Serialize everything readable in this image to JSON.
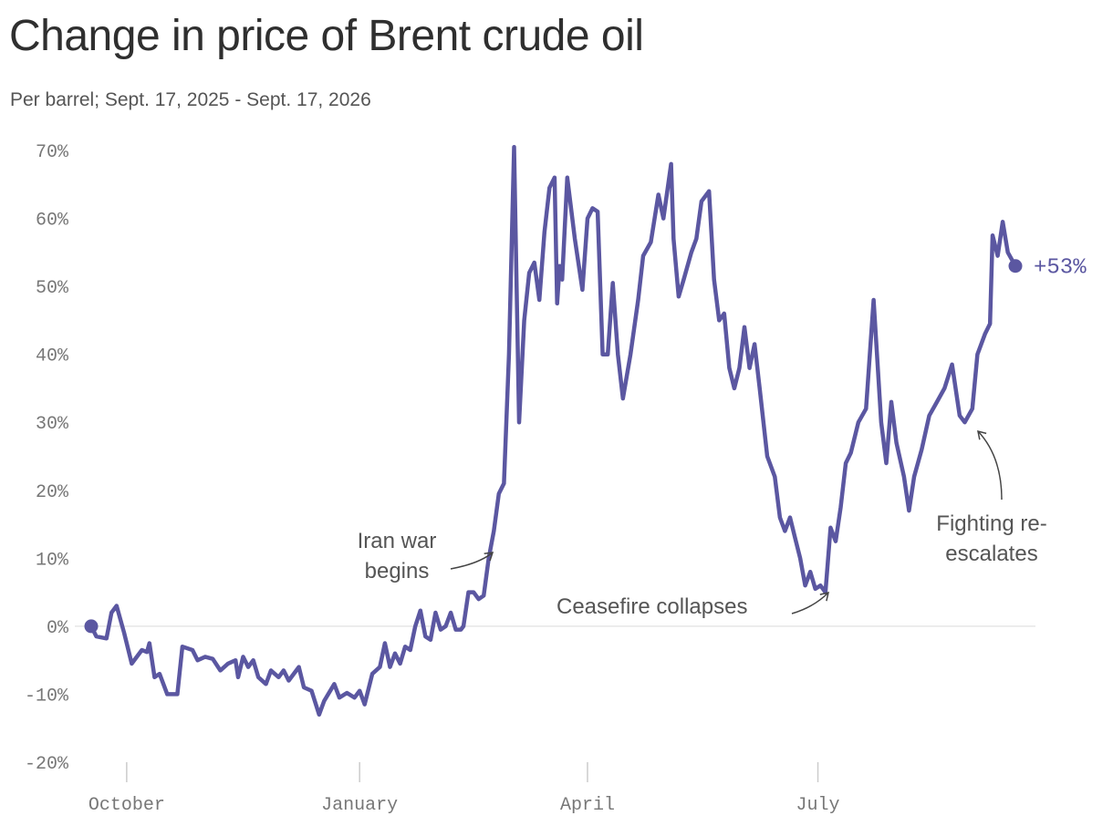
{
  "title": "Change in price of Brent crude oil",
  "subtitle": "Per barrel; Sept. 17, 2025 - Sept. 17, 2026",
  "colors": {
    "line": "#5b57a1",
    "zero_line": "#e6e6e6",
    "text": "#555555",
    "axis_text": "#777777"
  },
  "chart_data": {
    "type": "line",
    "title": "Change in price of Brent crude oil",
    "subtitle": "Per barrel; Sept. 17, 2025 - Sept. 17, 2026",
    "xlabel": "",
    "ylabel": "",
    "x_range": [
      "2025-09-17",
      "2026-09-17"
    ],
    "ylim": [
      -20,
      70
    ],
    "y_ticks": [
      -20,
      -10,
      0,
      10,
      20,
      30,
      40,
      50,
      60,
      70
    ],
    "y_tick_labels": [
      "-20%",
      "-10%",
      "0%",
      "10%",
      "20%",
      "30%",
      "40%",
      "50%",
      "60%",
      "70%"
    ],
    "x_ticks": [
      {
        "date": "2025-10-01",
        "label": "October"
      },
      {
        "date": "2026-01-01",
        "label": "January"
      },
      {
        "date": "2026-04-01",
        "label": "April"
      },
      {
        "date": "2026-07-01",
        "label": "July"
      }
    ],
    "grid": false,
    "zero_line": true,
    "series": [
      {
        "points": [
          [
            "2025-09-17",
            0
          ],
          [
            "2025-09-19",
            -1.5
          ],
          [
            "2025-09-23",
            -1.8
          ],
          [
            "2025-09-25",
            2
          ],
          [
            "2025-09-27",
            3
          ],
          [
            "2025-09-30",
            -1
          ],
          [
            "2025-10-03",
            -5.5
          ],
          [
            "2025-10-07",
            -3.5
          ],
          [
            "2025-10-09",
            -3.8
          ],
          [
            "2025-10-10",
            -2.5
          ],
          [
            "2025-10-12",
            -7.5
          ],
          [
            "2025-10-14",
            -7
          ],
          [
            "2025-10-17",
            -10
          ],
          [
            "2025-10-21",
            -10
          ],
          [
            "2025-10-23",
            -3
          ],
          [
            "2025-10-27",
            -3.5
          ],
          [
            "2025-10-29",
            -5
          ],
          [
            "2025-11-01",
            -4.5
          ],
          [
            "2025-11-04",
            -4.8
          ],
          [
            "2025-11-07",
            -6.5
          ],
          [
            "2025-11-10",
            -5.5
          ],
          [
            "2025-11-13",
            -5
          ],
          [
            "2025-11-14",
            -7.5
          ],
          [
            "2025-11-16",
            -4.5
          ],
          [
            "2025-11-18",
            -6
          ],
          [
            "2025-11-20",
            -5
          ],
          [
            "2025-11-22",
            -7.5
          ],
          [
            "2025-11-25",
            -8.5
          ],
          [
            "2025-11-27",
            -6.5
          ],
          [
            "2025-11-30",
            -7.5
          ],
          [
            "2025-12-02",
            -6.5
          ],
          [
            "2025-12-04",
            -8
          ],
          [
            "2025-12-08",
            -6
          ],
          [
            "2025-12-10",
            -9
          ],
          [
            "2025-12-13",
            -9.5
          ],
          [
            "2025-12-16",
            -13
          ],
          [
            "2025-12-18",
            -11
          ],
          [
            "2025-12-22",
            -8.5
          ],
          [
            "2025-12-24",
            -10.5
          ],
          [
            "2025-12-27",
            -9.8
          ],
          [
            "2025-12-30",
            -10.5
          ],
          [
            "2026-01-01",
            -9.5
          ],
          [
            "2026-01-03",
            -11.5
          ],
          [
            "2026-01-06",
            -7
          ],
          [
            "2026-01-09",
            -6
          ],
          [
            "2026-01-11",
            -2.5
          ],
          [
            "2026-01-13",
            -6
          ],
          [
            "2026-01-15",
            -4
          ],
          [
            "2026-01-17",
            -5.5
          ],
          [
            "2026-01-19",
            -3
          ],
          [
            "2026-01-21",
            -3.5
          ],
          [
            "2026-01-23",
            0
          ],
          [
            "2026-01-25",
            2.3
          ],
          [
            "2026-01-27",
            -1.5
          ],
          [
            "2026-01-29",
            -2
          ],
          [
            "2026-01-31",
            2
          ],
          [
            "2026-02-02",
            -0.5
          ],
          [
            "2026-02-04",
            0
          ],
          [
            "2026-02-06",
            2
          ],
          [
            "2026-02-08",
            -0.5
          ],
          [
            "2026-02-10",
            -0.5
          ],
          [
            "2026-02-11",
            0
          ],
          [
            "2026-02-13",
            5
          ],
          [
            "2026-02-15",
            5
          ],
          [
            "2026-02-17",
            4
          ],
          [
            "2026-02-19",
            4.5
          ],
          [
            "2026-02-21",
            10
          ],
          [
            "2026-02-23",
            14
          ],
          [
            "2026-02-25",
            19.5
          ],
          [
            "2026-02-27",
            21
          ],
          [
            "2026-03-01",
            40
          ],
          [
            "2026-03-03",
            70.5
          ],
          [
            "2026-03-05",
            30
          ],
          [
            "2026-03-07",
            45
          ],
          [
            "2026-03-09",
            52
          ],
          [
            "2026-03-11",
            53.5
          ],
          [
            "2026-03-13",
            48
          ],
          [
            "2026-03-15",
            58
          ],
          [
            "2026-03-17",
            64.5
          ],
          [
            "2026-03-19",
            66
          ],
          [
            "2026-03-20",
            47.5
          ],
          [
            "2026-03-21",
            53
          ],
          [
            "2026-03-22",
            51
          ],
          [
            "2026-03-24",
            66
          ],
          [
            "2026-03-27",
            57
          ],
          [
            "2026-03-30",
            49.5
          ],
          [
            "2026-04-01",
            60
          ],
          [
            "2026-04-03",
            61.5
          ],
          [
            "2026-04-05",
            61
          ],
          [
            "2026-04-07",
            40
          ],
          [
            "2026-04-09",
            40
          ],
          [
            "2026-04-11",
            50.5
          ],
          [
            "2026-04-13",
            40
          ],
          [
            "2026-04-15",
            33.5
          ],
          [
            "2026-04-18",
            40
          ],
          [
            "2026-04-21",
            48
          ],
          [
            "2026-04-23",
            54.5
          ],
          [
            "2026-04-26",
            56.5
          ],
          [
            "2026-04-29",
            63.5
          ],
          [
            "2026-05-01",
            60
          ],
          [
            "2026-05-04",
            68
          ],
          [
            "2026-05-05",
            57
          ],
          [
            "2026-05-07",
            48.5
          ],
          [
            "2026-05-09",
            51
          ],
          [
            "2026-05-12",
            55
          ],
          [
            "2026-05-14",
            57
          ],
          [
            "2026-05-16",
            62.5
          ],
          [
            "2026-05-19",
            64
          ],
          [
            "2026-05-21",
            51
          ],
          [
            "2026-05-23",
            45
          ],
          [
            "2026-05-25",
            46
          ],
          [
            "2026-05-27",
            38
          ],
          [
            "2026-05-29",
            35
          ],
          [
            "2026-05-31",
            38
          ],
          [
            "2026-06-02",
            44
          ],
          [
            "2026-06-04",
            38
          ],
          [
            "2026-06-06",
            41.5
          ],
          [
            "2026-06-08",
            35
          ],
          [
            "2026-06-11",
            25
          ],
          [
            "2026-06-14",
            22
          ],
          [
            "2026-06-16",
            16
          ],
          [
            "2026-06-18",
            14
          ],
          [
            "2026-06-20",
            16
          ],
          [
            "2026-06-22",
            13
          ],
          [
            "2026-06-24",
            10
          ],
          [
            "2026-06-26",
            6
          ],
          [
            "2026-06-28",
            8
          ],
          [
            "2026-06-30",
            5.5
          ],
          [
            "2026-07-02",
            6
          ],
          [
            "2026-07-04",
            5
          ],
          [
            "2026-07-06",
            14.5
          ],
          [
            "2026-07-08",
            12.5
          ],
          [
            "2026-07-10",
            17.5
          ],
          [
            "2026-07-12",
            24
          ],
          [
            "2026-07-14",
            25.5
          ],
          [
            "2026-07-17",
            30
          ],
          [
            "2026-07-20",
            32
          ],
          [
            "2026-07-23",
            48
          ],
          [
            "2026-07-26",
            30
          ],
          [
            "2026-07-28",
            24
          ],
          [
            "2026-07-30",
            33
          ],
          [
            "2026-08-01",
            27
          ],
          [
            "2026-08-04",
            22
          ],
          [
            "2026-08-06",
            17
          ],
          [
            "2026-08-08",
            22
          ],
          [
            "2026-08-11",
            26
          ],
          [
            "2026-08-14",
            31
          ],
          [
            "2026-08-17",
            33
          ],
          [
            "2026-08-20",
            35
          ],
          [
            "2026-08-23",
            38.5
          ],
          [
            "2026-08-26",
            31
          ],
          [
            "2026-08-28",
            30
          ],
          [
            "2026-08-31",
            32
          ],
          [
            "2026-09-02",
            40
          ],
          [
            "2026-09-05",
            43
          ],
          [
            "2026-09-07",
            44.5
          ],
          [
            "2026-09-08",
            57.5
          ],
          [
            "2026-09-10",
            54.5
          ],
          [
            "2026-09-12",
            59.5
          ],
          [
            "2026-09-14",
            55
          ],
          [
            "2026-09-17",
            53
          ]
        ]
      }
    ],
    "start_marker": {
      "date": "2025-09-17",
      "value": 0
    },
    "end_marker": {
      "date": "2026-09-17",
      "value": 53,
      "label": "+53%"
    },
    "annotations": [
      {
        "lines": [
          "Iran war",
          "begins"
        ],
        "target_date": "2026-02-23",
        "target_value": 11
      },
      {
        "lines": [
          "Ceasefire collapses"
        ],
        "target_date": "2026-07-02",
        "target_value": 5
      },
      {
        "lines": [
          "Fighting re-",
          "escalates"
        ],
        "target_date": "2026-08-29",
        "target_value": 29.5
      }
    ]
  }
}
